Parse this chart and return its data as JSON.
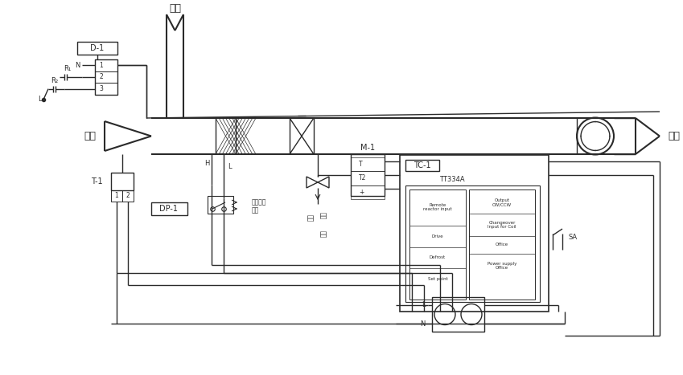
{
  "bg": "#ffffff",
  "lc": "#2a2a2a",
  "labels": {
    "xinfeng": "新风",
    "huifeng": "回风",
    "songfeng": "送风",
    "D1": "D-1",
    "T1": "T-1",
    "DP1": "DP-1",
    "M1": "M-1",
    "TC1": "TC-1",
    "N": "N",
    "R1": "R₁",
    "R2": "R₂",
    "L": "L",
    "H": "H",
    "Ll": "L",
    "SA": "SA",
    "TT334A": "TT334A",
    "alarm1": "至报警器",
    "alarm2": "装置",
    "water1": "水进",
    "water2": "水出",
    "water3": "回水",
    "out_cw": "Output\nCW/CCW",
    "changeover": "Changeover\nInput for Coil",
    "office": "Office",
    "power_supply": "Power supply\nOffice",
    "remote": "Remote\nreactor input",
    "drive": "Drive",
    "defrost": "Defrost"
  },
  "figsize": [
    8.49,
    4.67
  ],
  "dpi": 100
}
